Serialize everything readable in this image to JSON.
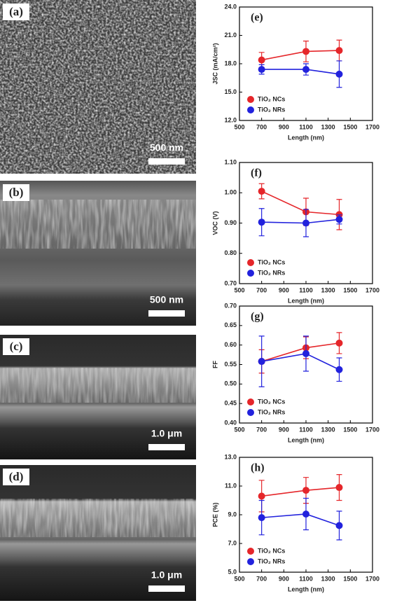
{
  "images": [
    {
      "label": "(a)",
      "scale": "500 nm"
    },
    {
      "label": "(b)",
      "scale": "500 nm"
    },
    {
      "label": "(c)",
      "scale": "1.0 μm"
    },
    {
      "label": "(d)",
      "scale": "1.0 μm"
    }
  ],
  "chart_data": [
    {
      "type": "line",
      "label": "(e)",
      "ylabel": "JSC (mA/cm²)",
      "xlabel": "Length (nm)",
      "x": [
        700,
        1100,
        1400
      ],
      "xlim": [
        500,
        1700
      ],
      "xticks": [
        500,
        700,
        900,
        1100,
        1300,
        1500,
        1700
      ],
      "ylim": [
        12,
        24
      ],
      "yticks": [
        {
          "value": 12,
          "label": "12.0"
        },
        {
          "value": 15,
          "label": "15.0"
        },
        {
          "value": 18,
          "label": "18.0"
        },
        {
          "value": 21,
          "label": "21.0"
        },
        {
          "value": 24,
          "label": "24.0"
        }
      ],
      "series": [
        {
          "name": "TiO₂ NCs",
          "color": "#e5262a",
          "values": [
            18.4,
            19.3,
            19.4
          ],
          "errors": [
            0.8,
            1.1,
            1.1
          ]
        },
        {
          "name": "TiO₂ NRs",
          "color": "#2222dd",
          "values": [
            17.4,
            17.4,
            16.9
          ],
          "errors": [
            0.5,
            0.6,
            1.4
          ]
        }
      ]
    },
    {
      "type": "line",
      "label": "(f)",
      "ylabel": "VOC (V)",
      "xlabel": "Length (nm)",
      "x": [
        700,
        1100,
        1400
      ],
      "xlim": [
        500,
        1700
      ],
      "xticks": [
        500,
        700,
        900,
        1100,
        1300,
        1500,
        1700
      ],
      "ylim": [
        0.7,
        1.1
      ],
      "yticks": [
        {
          "value": 0.7,
          "label": "0.70"
        },
        {
          "value": 0.8,
          "label": "0.80"
        },
        {
          "value": 0.9,
          "label": "0.90"
        },
        {
          "value": 1.0,
          "label": "1.00"
        },
        {
          "value": 1.1,
          "label": "1.10"
        }
      ],
      "series": [
        {
          "name": "TiO₂ NCs",
          "color": "#e5262a",
          "values": [
            1.005,
            0.937,
            0.928
          ],
          "errors": [
            0.025,
            0.045,
            0.05
          ]
        },
        {
          "name": "TiO₂ NRs",
          "color": "#2222dd",
          "values": [
            0.903,
            0.9,
            0.912
          ],
          "errors": [
            0.045,
            0.045,
            0.015
          ]
        }
      ]
    },
    {
      "type": "line",
      "label": "(g)",
      "ylabel": "FF",
      "xlabel": "Length (nm)",
      "x": [
        700,
        1100,
        1400
      ],
      "xlim": [
        500,
        1700
      ],
      "xticks": [
        500,
        700,
        900,
        1100,
        1300,
        1500,
        1700
      ],
      "ylim": [
        0.4,
        0.7
      ],
      "yticks": [
        {
          "value": 0.4,
          "label": "0.40"
        },
        {
          "value": 0.45,
          "label": "0.45"
        },
        {
          "value": 0.5,
          "label": "0.50"
        },
        {
          "value": 0.55,
          "label": "0.55"
        },
        {
          "value": 0.6,
          "label": "0.60"
        },
        {
          "value": 0.65,
          "label": "0.65"
        },
        {
          "value": 0.7,
          "label": "0.70"
        }
      ],
      "series": [
        {
          "name": "TiO₂ NCs",
          "color": "#e5262a",
          "values": [
            0.558,
            0.593,
            0.605
          ],
          "errors": [
            0.03,
            0.028,
            0.027
          ]
        },
        {
          "name": "TiO₂ NRs",
          "color": "#2222dd",
          "values": [
            0.558,
            0.578,
            0.537
          ],
          "errors": [
            0.065,
            0.045,
            0.03
          ]
        }
      ]
    },
    {
      "type": "line",
      "label": "(h)",
      "ylabel": "PCE (%)",
      "xlabel": "Length (nm)",
      "x": [
        700,
        1100,
        1400
      ],
      "xlim": [
        500,
        1700
      ],
      "xticks": [
        500,
        700,
        900,
        1100,
        1300,
        1500,
        1700
      ],
      "ylim": [
        5,
        13
      ],
      "yticks": [
        {
          "value": 5,
          "label": "5.0"
        },
        {
          "value": 7,
          "label": "7.0"
        },
        {
          "value": 9,
          "label": "9.0"
        },
        {
          "value": 11,
          "label": "11.0"
        },
        {
          "value": 13,
          "label": "13.0"
        }
      ],
      "series": [
        {
          "name": "TiO₂ NCs",
          "color": "#e5262a",
          "values": [
            10.3,
            10.7,
            10.9
          ],
          "errors": [
            1.1,
            0.9,
            0.9
          ]
        },
        {
          "name": "TiO₂ NRs",
          "color": "#2222dd",
          "values": [
            8.8,
            9.05,
            8.25
          ],
          "errors": [
            1.2,
            1.1,
            1.0
          ]
        }
      ]
    }
  ]
}
